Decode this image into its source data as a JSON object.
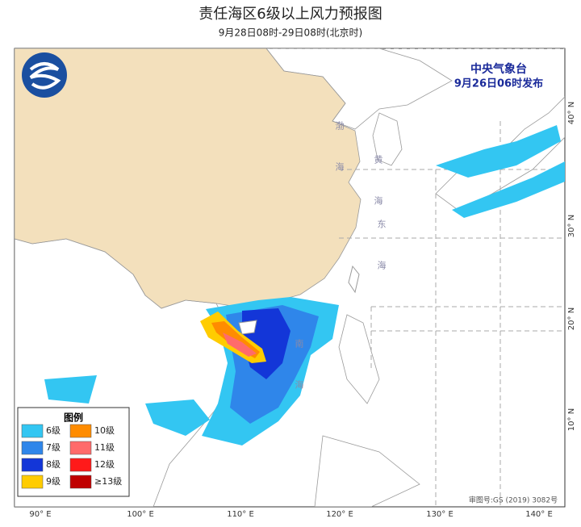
{
  "header": {
    "title": "责任海区6级以上风力预报图",
    "subtitle": "9月28日08时-29日08时(北京时)"
  },
  "issuer": {
    "name": "中央气象台",
    "time": "9月26日06时发布"
  },
  "sea_labels": [
    "渤海",
    "黄海",
    "东海",
    "南海"
  ],
  "lon_labels": [
    "90° E",
    "100° E",
    "110° E",
    "120° E",
    "130° E",
    "140° E"
  ],
  "lat_labels": [
    "40° N",
    "30° N",
    "20° N",
    "10° N"
  ],
  "legend": {
    "title": "图例",
    "items": [
      {
        "label": "6级",
        "color": "#33c6f2"
      },
      {
        "label": "7级",
        "color": "#2f86ea"
      },
      {
        "label": "8级",
        "color": "#1336d8"
      },
      {
        "label": "9级",
        "color": "#ffcc00"
      },
      {
        "label": "10级",
        "color": "#ff8c00"
      },
      {
        "label": "11级",
        "color": "#ff6b6b"
      },
      {
        "label": "12级",
        "color": "#ff1a1a"
      },
      {
        "label": "≥13级",
        "color": "#c00000"
      }
    ]
  },
  "approval": "审图号:GS (2019) 3082号"
}
